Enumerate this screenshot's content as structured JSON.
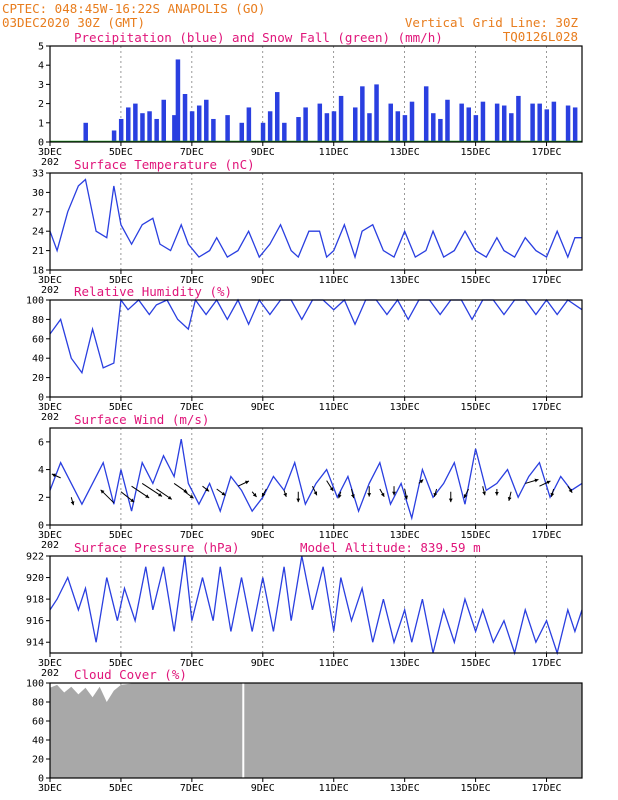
{
  "header": {
    "line1": "CPTEC:  048:45W-16:22S  ANAPOLIS (GO)",
    "line2": "03DEC2020 30Z (GMT)",
    "grid_note": "Vertical Grid Line: 30Z",
    "code": "TQ0126L028"
  },
  "colors": {
    "header": "#e87d1e",
    "title": "#e0157a",
    "line": "#2a3fe0",
    "snow": "#20a020",
    "cloud": "#a8a8a8"
  },
  "model_altitude": "Model Altitude: 839.59 m",
  "x_axis": {
    "labels": [
      "3DEC",
      "5DEC",
      "7DEC",
      "9DEC",
      "11DEC",
      "13DEC",
      "15DEC",
      "17DEC"
    ],
    "label_days": [
      3,
      5,
      7,
      9,
      11,
      13,
      15,
      17
    ],
    "extra_label": "202",
    "range_days": [
      3.0,
      18.0
    ]
  },
  "chart_data": [
    {
      "type": "bar",
      "title": "Precipitation (blue) and Snow Fall (green) (mm/h)",
      "ylim": [
        0,
        5
      ],
      "yticks": [
        0,
        1,
        2,
        3,
        4,
        5
      ],
      "series": [
        {
          "name": "Precipitation",
          "color": "#2a3fe0",
          "x": [
            4.0,
            4.8,
            5.0,
            5.2,
            5.4,
            5.6,
            5.8,
            6.0,
            6.2,
            6.5,
            6.6,
            6.8,
            7.0,
            7.2,
            7.4,
            7.6,
            8.0,
            8.4,
            8.6,
            9.0,
            9.2,
            9.4,
            9.6,
            10.0,
            10.2,
            10.6,
            10.8,
            11.0,
            11.2,
            11.6,
            11.8,
            12.0,
            12.2,
            12.6,
            12.8,
            13.0,
            13.2,
            13.6,
            13.8,
            14.0,
            14.2,
            14.6,
            14.8,
            15.0,
            15.2,
            15.6,
            15.8,
            16.0,
            16.2,
            16.6,
            16.8,
            17.0,
            17.2,
            17.6,
            17.8
          ],
          "values": [
            1.0,
            0.6,
            1.2,
            1.8,
            2.0,
            1.5,
            1.6,
            1.2,
            2.2,
            1.4,
            4.3,
            2.5,
            1.6,
            1.9,
            2.2,
            1.2,
            1.4,
            1.0,
            1.8,
            1.0,
            1.6,
            2.6,
            1.0,
            1.3,
            1.8,
            2.0,
            1.5,
            1.6,
            2.4,
            1.8,
            2.9,
            1.5,
            3.0,
            2.0,
            1.6,
            1.4,
            2.1,
            2.9,
            1.5,
            1.2,
            2.2,
            2.0,
            1.8,
            1.4,
            2.1,
            2.0,
            1.9,
            1.5,
            2.4,
            2.0,
            2.0,
            1.7,
            2.1,
            1.9,
            1.8
          ]
        },
        {
          "name": "Snow Fall",
          "color": "#20a020",
          "x": [
            3.0,
            18.0
          ],
          "values": [
            0,
            0
          ]
        }
      ]
    },
    {
      "type": "line",
      "title": "Surface Temperature (nC)",
      "ylim": [
        18,
        33
      ],
      "yticks": [
        18,
        21,
        24,
        27,
        30,
        33
      ],
      "x": [
        3.0,
        3.2,
        3.5,
        3.8,
        4.0,
        4.3,
        4.6,
        4.8,
        5.0,
        5.3,
        5.6,
        5.9,
        6.1,
        6.4,
        6.7,
        6.9,
        7.2,
        7.5,
        7.7,
        8.0,
        8.3,
        8.6,
        8.9,
        9.2,
        9.5,
        9.8,
        10.0,
        10.3,
        10.6,
        10.8,
        11.0,
        11.3,
        11.6,
        11.8,
        12.1,
        12.4,
        12.7,
        13.0,
        13.3,
        13.6,
        13.8,
        14.1,
        14.4,
        14.7,
        15.0,
        15.3,
        15.6,
        15.8,
        16.1,
        16.4,
        16.7,
        17.0,
        17.3,
        17.6,
        17.8,
        18.0
      ],
      "values": [
        24,
        21,
        27,
        31,
        32,
        24,
        23,
        31,
        25,
        22,
        25,
        26,
        22,
        21,
        25,
        22,
        20,
        21,
        23,
        20,
        21,
        24,
        20,
        22,
        25,
        21,
        20,
        24,
        24,
        20,
        21,
        25,
        20,
        24,
        25,
        21,
        20,
        24,
        20,
        21,
        24,
        20,
        21,
        24,
        21,
        20,
        23,
        21,
        20,
        23,
        21,
        20,
        24,
        20,
        23,
        23
      ]
    },
    {
      "type": "line",
      "title": "Relative Humidity (%)",
      "ylim": [
        0,
        100
      ],
      "yticks": [
        0,
        20,
        40,
        60,
        80,
        100
      ],
      "x": [
        3.0,
        3.3,
        3.6,
        3.9,
        4.2,
        4.5,
        4.8,
        5.0,
        5.2,
        5.5,
        5.8,
        6.0,
        6.3,
        6.6,
        6.9,
        7.1,
        7.4,
        7.7,
        8.0,
        8.3,
        8.6,
        8.9,
        9.2,
        9.5,
        9.8,
        10.1,
        10.4,
        10.7,
        11.0,
        11.3,
        11.6,
        11.9,
        12.2,
        12.5,
        12.8,
        13.1,
        13.4,
        13.7,
        14.0,
        14.3,
        14.6,
        14.9,
        15.2,
        15.5,
        15.8,
        16.1,
        16.4,
        16.7,
        17.0,
        17.3,
        17.6,
        18.0
      ],
      "values": [
        65,
        80,
        40,
        25,
        70,
        30,
        35,
        100,
        90,
        100,
        85,
        95,
        100,
        80,
        70,
        100,
        85,
        100,
        80,
        100,
        75,
        100,
        85,
        100,
        100,
        80,
        100,
        100,
        90,
        100,
        75,
        100,
        100,
        85,
        100,
        80,
        100,
        100,
        85,
        100,
        100,
        80,
        100,
        100,
        85,
        100,
        100,
        85,
        100,
        85,
        100,
        90
      ]
    },
    {
      "type": "line",
      "title": "Surface Wind (m/s)",
      "ylim": [
        0,
        7
      ],
      "yticks": [
        0,
        2,
        4,
        6
      ],
      "x": [
        3.0,
        3.3,
        3.6,
        3.9,
        4.2,
        4.5,
        4.8,
        5.0,
        5.3,
        5.6,
        5.9,
        6.2,
        6.5,
        6.7,
        6.9,
        7.2,
        7.5,
        7.8,
        8.1,
        8.4,
        8.7,
        9.0,
        9.3,
        9.6,
        9.9,
        10.2,
        10.5,
        10.8,
        11.1,
        11.4,
        11.7,
        12.0,
        12.3,
        12.6,
        12.9,
        13.2,
        13.5,
        13.8,
        14.1,
        14.4,
        14.7,
        15.0,
        15.3,
        15.6,
        15.9,
        16.2,
        16.5,
        16.8,
        17.1,
        17.4,
        17.7,
        18.0
      ],
      "values": [
        2.5,
        4.5,
        3.0,
        1.5,
        3.0,
        4.5,
        1.5,
        4.0,
        1.0,
        4.5,
        3.0,
        5.0,
        3.5,
        6.2,
        3.0,
        1.5,
        3.0,
        1.0,
        3.5,
        2.5,
        1.0,
        2.0,
        3.5,
        2.5,
        4.5,
        1.5,
        3.0,
        4.0,
        2.0,
        3.5,
        1.0,
        3.0,
        4.5,
        1.5,
        3.0,
        0.5,
        4.0,
        2.0,
        3.0,
        4.5,
        1.5,
        5.5,
        2.5,
        3.0,
        4.0,
        2.0,
        3.5,
        4.5,
        2.0,
        3.5,
        2.5,
        3.0
      ],
      "arrows": {
        "x": [
          3.3,
          3.6,
          4.8,
          5.0,
          5.3,
          5.6,
          6.0,
          6.5,
          6.8,
          7.3,
          7.7,
          8.3,
          8.7,
          9.1,
          9.6,
          10.0,
          10.4,
          10.8,
          11.2,
          11.5,
          12.0,
          12.3,
          12.7,
          13.0,
          13.4,
          13.9,
          14.3,
          14.8,
          15.2,
          15.6,
          16.0,
          16.4,
          16.8,
          17.2,
          17.6
        ],
        "y": [
          3.4,
          2.0,
          1.6,
          2.4,
          2.8,
          3.0,
          2.6,
          3.0,
          2.4,
          2.8,
          2.6,
          2.8,
          2.4,
          2.6,
          2.5,
          2.4,
          2.8,
          3.2,
          2.4,
          2.6,
          2.8,
          2.6,
          2.8,
          2.6,
          3.0,
          2.6,
          2.4,
          2.6,
          2.8,
          2.6,
          2.4,
          3.0,
          2.8,
          2.6,
          2.8
        ],
        "u": [
          -0.4,
          0.1,
          -0.6,
          0.6,
          0.8,
          0.9,
          0.7,
          0.6,
          0.4,
          0.3,
          0.4,
          0.5,
          0.2,
          -0.2,
          0.1,
          0.0,
          0.2,
          0.3,
          -0.1,
          0.1,
          0.0,
          0.2,
          0.0,
          0.1,
          0.2,
          -0.1,
          0.0,
          -0.2,
          0.1,
          0.0,
          -0.1,
          0.6,
          0.5,
          -0.1,
          0.2
        ],
        "v": [
          0.3,
          -0.6,
          1.0,
          -0.8,
          -0.9,
          -1.0,
          -0.8,
          -0.7,
          -0.5,
          -0.4,
          -0.5,
          0.4,
          -0.4,
          -0.6,
          -0.5,
          -0.8,
          -0.7,
          -0.8,
          -0.5,
          -0.7,
          -0.8,
          -0.6,
          -0.7,
          -0.8,
          0.3,
          -0.6,
          -0.8,
          -0.7,
          -0.7,
          -0.5,
          -0.7,
          0.3,
          0.4,
          -0.6,
          -0.5
        ]
      }
    },
    {
      "type": "line",
      "title": "Surface Pressure (hPa)",
      "ylim": [
        913,
        922
      ],
      "yticks": [
        914,
        916,
        918,
        920,
        922
      ],
      "x": [
        3.0,
        3.2,
        3.5,
        3.8,
        4.0,
        4.3,
        4.6,
        4.9,
        5.1,
        5.4,
        5.7,
        5.9,
        6.2,
        6.5,
        6.8,
        7.0,
        7.3,
        7.6,
        7.8,
        8.1,
        8.4,
        8.7,
        9.0,
        9.3,
        9.6,
        9.8,
        10.1,
        10.4,
        10.7,
        11.0,
        11.2,
        11.5,
        11.8,
        12.1,
        12.4,
        12.7,
        13.0,
        13.2,
        13.5,
        13.8,
        14.1,
        14.4,
        14.7,
        15.0,
        15.2,
        15.5,
        15.8,
        16.1,
        16.4,
        16.7,
        17.0,
        17.3,
        17.6,
        17.8,
        18.0
      ],
      "values": [
        917,
        918,
        920,
        917,
        919,
        914,
        920,
        916,
        919,
        916,
        921,
        917,
        921,
        915,
        922,
        916,
        920,
        916,
        921,
        915,
        920,
        915,
        920,
        915,
        921,
        916,
        922,
        917,
        921,
        915,
        920,
        916,
        919,
        914,
        918,
        914,
        917,
        914,
        918,
        913,
        917,
        914,
        918,
        915,
        917,
        914,
        916,
        913,
        917,
        914,
        916,
        913,
        917,
        915,
        917
      ]
    },
    {
      "type": "area",
      "title": "Cloud Cover (%)",
      "ylim": [
        0,
        100
      ],
      "yticks": [
        0,
        20,
        40,
        60,
        80,
        100
      ],
      "x": [
        3.0,
        3.2,
        3.4,
        3.6,
        3.8,
        4.0,
        4.2,
        4.4,
        4.6,
        4.8,
        5.0,
        5.4,
        6.0,
        7.0,
        8.0,
        8.5,
        9.0,
        10.0,
        11.0,
        12.0,
        13.0,
        14.0,
        15.0,
        16.0,
        17.0,
        18.0
      ],
      "values": [
        95,
        98,
        90,
        96,
        88,
        95,
        85,
        96,
        80,
        92,
        98,
        100,
        100,
        100,
        100,
        100,
        100,
        100,
        100,
        100,
        100,
        100,
        100,
        100,
        100,
        100
      ],
      "gap_at": 8.45
    }
  ]
}
